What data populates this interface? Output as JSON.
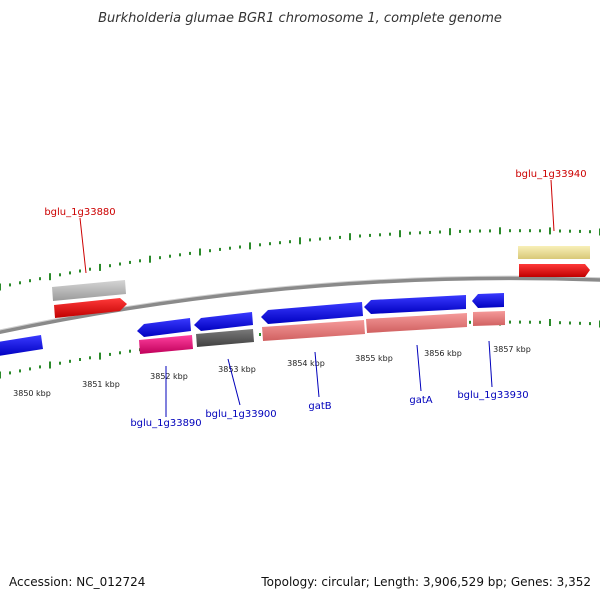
{
  "title": "Burkholderia glumae BGR1 chromosome 1, complete genome",
  "footer": {
    "accession": "Accession: NC_012724",
    "topology": "Topology: circular; Length: 3,906,529 bp; Genes: 3,352"
  },
  "colors": {
    "backbone": "#8a8a8a",
    "tick": "#2a8a2a",
    "gene_label_top": "#cc0000",
    "gene_label_bottom": "#0000bb",
    "cds": "#0000dd",
    "rna": "#f08080",
    "magenta": "#e0107a",
    "dark_grey": "#5a5a5a",
    "light_grey": "#bdbdbd",
    "red": "#ee0000",
    "yellow": "#f0e39a"
  },
  "kbp_labels": [
    "3850 kbp",
    "3851 kbp",
    "3852 kbp",
    "3853 kbp",
    "3854 kbp",
    "3855 kbp",
    "3856 kbp",
    "3857 kbp"
  ],
  "gene_labels": {
    "top": [
      "bglu_1g33880",
      "bglu_1g33940"
    ],
    "bottom": [
      "bglu_1g33890",
      "bglu_1g33900",
      "gatB",
      "gatA",
      "bglu_1g33930"
    ]
  }
}
